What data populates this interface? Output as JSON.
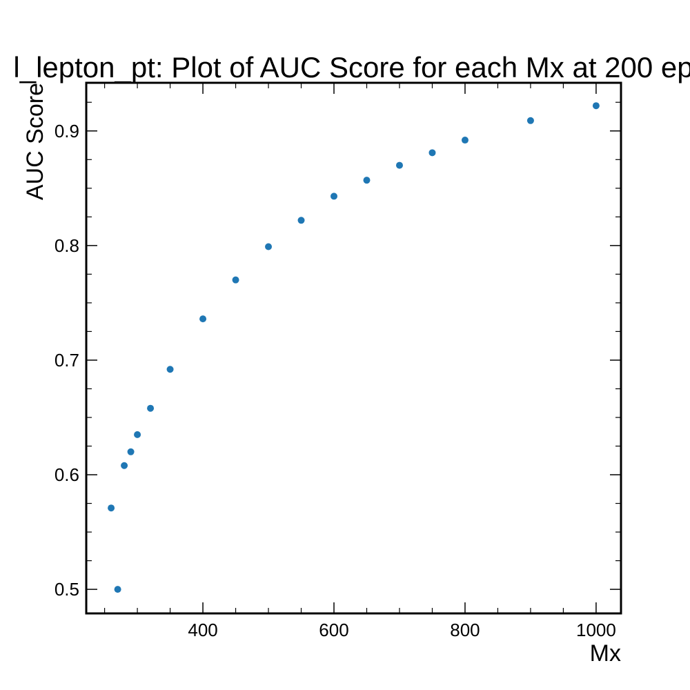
{
  "chart_data": {
    "type": "scatter",
    "title": "l_lepton_pt: Plot of AUC Score for each Mx at 200 ep",
    "xlabel": "Mx",
    "ylabel": "AUC Score",
    "xlim": [
      222,
      1038
    ],
    "ylim": [
      0.479,
      0.942
    ],
    "x_ticks": [
      400,
      600,
      800,
      1000
    ],
    "x_tick_labels": [
      "400",
      "600",
      "800",
      "1000"
    ],
    "y_ticks": [
      0.5,
      0.6,
      0.7,
      0.8,
      0.9
    ],
    "y_tick_labels": [
      "0.5",
      "0.6",
      "0.7",
      "0.8",
      "0.9"
    ],
    "grid": false,
    "marker_color": "#1f77b4",
    "series": [
      {
        "x": [
          260,
          270,
          280,
          290,
          300,
          320,
          350,
          400,
          450,
          500,
          550,
          600,
          650,
          700,
          750,
          800,
          900,
          1000
        ],
        "y": [
          0.571,
          0.5,
          0.608,
          0.62,
          0.635,
          0.658,
          0.692,
          0.736,
          0.77,
          0.799,
          0.822,
          0.843,
          0.857,
          0.87,
          0.881,
          0.892,
          0.909,
          0.922
        ]
      }
    ]
  }
}
